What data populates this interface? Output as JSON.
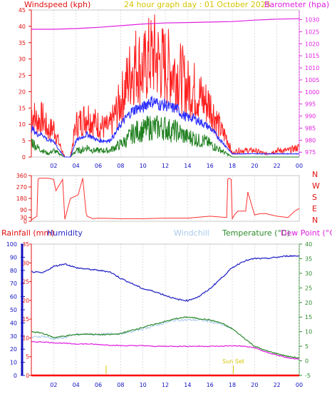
{
  "title": "24 hour graph day : 01 October 2025",
  "colors": {
    "wind_gust": "#ff2020",
    "wind_avg": "#3030ff",
    "wind_low": "#208020",
    "barometer": "#e020e0",
    "direction": "#ff3030",
    "humidity": "#2b2bc8",
    "windchill": "#a8c8ec",
    "temperature": "#2e8b2e",
    "dewpoint": "#e020e0",
    "rainfall": "#ff0000",
    "sun": "#d6c600",
    "grid": "#c8c8c8",
    "frame": "#c8c8c8"
  },
  "chart_data": [
    {
      "type": "line",
      "title": "24 hour graph day : 01 October 2025",
      "left_axis_label": "Windspeed (kph)",
      "right_axis_label": "Barometer (hpa)",
      "x_ticks": [
        "02",
        "04",
        "06",
        "08",
        "10",
        "12",
        "14",
        "16",
        "18",
        "20",
        "22",
        "00"
      ],
      "x_range": [
        0,
        24
      ],
      "ylim_left": [
        0,
        45
      ],
      "y_ticks_left": [
        0,
        5,
        10,
        15,
        20,
        25,
        30,
        35,
        40,
        45
      ],
      "ylim_right": [
        973,
        1034
      ],
      "y_ticks_right": [
        975,
        980,
        985,
        990,
        995,
        1000,
        1005,
        1010,
        1015,
        1020,
        1025,
        1030
      ],
      "series": [
        {
          "key": "wind_gust",
          "hours": [
            0,
            0.5,
            1,
            1.5,
            2,
            2.5,
            3,
            3.5,
            4,
            4.5,
            5,
            5.5,
            6,
            6.5,
            7,
            7.5,
            8,
            8.5,
            9,
            9.5,
            10,
            10.5,
            11,
            11.5,
            12,
            12.5,
            13,
            13.5,
            14,
            14.5,
            15,
            15.5,
            16,
            16.5,
            17,
            17.5,
            18,
            18.5,
            19,
            20,
            21,
            22,
            23,
            24
          ],
          "values": [
            14,
            11,
            12,
            8,
            9,
            4,
            0,
            0,
            10,
            11,
            13,
            11,
            10,
            9,
            9,
            13,
            17,
            22,
            27,
            29,
            26,
            30,
            31,
            29,
            28,
            27,
            26,
            24,
            21,
            21,
            19,
            17,
            16,
            12,
            8,
            6,
            1,
            2,
            2,
            2,
            1,
            2,
            2,
            3
          ]
        },
        {
          "key": "wind_avg",
          "hours": [
            0,
            0.5,
            1,
            1.5,
            2,
            2.5,
            3,
            3.5,
            4,
            4.5,
            5,
            5.5,
            6,
            6.5,
            7,
            7.5,
            8,
            8.5,
            9,
            9.5,
            10,
            10.5,
            11,
            11.5,
            12,
            12.5,
            13,
            13.5,
            14,
            14.5,
            15,
            15.5,
            16,
            16.5,
            17,
            17.5,
            18,
            19,
            20,
            21,
            22,
            23,
            24
          ],
          "values": [
            9,
            7,
            7,
            5,
            5,
            2,
            0,
            0,
            5,
            6,
            7,
            6,
            5,
            5,
            5,
            7,
            10,
            12,
            14,
            15,
            15,
            17,
            17,
            16,
            16,
            15,
            15,
            13,
            12,
            12,
            11,
            10,
            9,
            7,
            5,
            3,
            1,
            1,
            1,
            1,
            1,
            1,
            1
          ]
        },
        {
          "key": "wind_low",
          "hours": [
            0,
            0.5,
            1,
            1.5,
            2,
            2.5,
            3,
            3.5,
            4,
            4.5,
            5,
            5.5,
            6,
            6.5,
            7,
            7.5,
            8,
            8.5,
            9,
            9.5,
            10,
            10.5,
            11,
            11.5,
            12,
            12.5,
            13,
            13.5,
            14,
            14.5,
            15,
            15.5,
            16,
            16.5,
            17,
            17.5,
            18,
            19,
            24
          ],
          "values": [
            5,
            3,
            2,
            1,
            2,
            1,
            0,
            0,
            2,
            2,
            3,
            2,
            2,
            2,
            2,
            3,
            4,
            5,
            7,
            8,
            8,
            9,
            9,
            9,
            9,
            8,
            8,
            7,
            6,
            6,
            5,
            5,
            4,
            3,
            2,
            1,
            0,
            0,
            0
          ]
        },
        {
          "key": "barometer",
          "axis": "right",
          "hours": [
            0,
            2,
            4,
            6,
            8,
            10,
            12,
            14,
            16,
            18,
            20,
            22,
            24
          ],
          "values": [
            1026,
            1026,
            1026.3,
            1026.8,
            1027.5,
            1028.2,
            1028.6,
            1028.8,
            1029,
            1029.2,
            1029.8,
            1030.2,
            1030.4
          ]
        }
      ]
    },
    {
      "type": "line",
      "title": "",
      "right_axis_label": "N W S E N",
      "x_range": [
        0,
        24
      ],
      "ylim": [
        0,
        360
      ],
      "y_ticks": [
        0,
        30,
        90,
        180,
        270,
        360
      ],
      "series": [
        {
          "key": "direction",
          "hours": [
            0,
            0.5,
            0.6,
            0.7,
            1.5,
            2,
            2.2,
            2.8,
            3.0,
            3.5,
            4,
            4.2,
            4.6,
            4.9,
            5,
            5.5,
            6,
            8,
            10,
            12,
            14,
            16,
            17.5,
            17.6,
            17.7,
            17.9,
            18,
            18.2,
            18.5,
            19.2,
            19.4,
            20,
            20.5,
            21,
            22,
            23,
            23.6,
            24
          ],
          "values": [
            10,
            40,
            330,
            340,
            340,
            330,
            240,
            330,
            15,
            180,
            200,
            210,
            340,
            70,
            40,
            20,
            25,
            20,
            20,
            25,
            25,
            40,
            30,
            330,
            340,
            330,
            20,
            50,
            80,
            80,
            230,
            50,
            60,
            60,
            40,
            30,
            80,
            100
          ]
        }
      ]
    },
    {
      "type": "line",
      "legend": [
        "Rainfall (mm)",
        "Humidity",
        "Windchill",
        "Temperature (°C)",
        "Dew Point (°C)"
      ],
      "x_ticks": [
        "02",
        "04",
        "06",
        "08",
        "10",
        "12",
        "14",
        "16",
        "18",
        "20",
        "22",
        "00"
      ],
      "x_range": [
        0,
        24
      ],
      "ylim_humidity": [
        0,
        100
      ],
      "y_ticks_humidity": [
        0,
        10,
        20,
        30,
        40,
        50,
        60,
        70,
        80,
        90,
        100
      ],
      "ylim_rain": [
        0,
        35
      ],
      "y_ticks_rain": [
        0,
        5,
        10,
        15,
        20,
        25,
        30,
        35
      ],
      "ylim_temp": [
        -5,
        40
      ],
      "y_ticks_temp": [
        -5,
        0,
        5,
        10,
        15,
        20,
        25,
        30,
        35,
        40
      ],
      "annotations": [
        {
          "text": "Sun Set",
          "hour": 18.1
        }
      ],
      "series": [
        {
          "key": "humidity",
          "name": "Humidity",
          "axis": "humidity",
          "hours": [
            0,
            1,
            2,
            3,
            4,
            5,
            6,
            7,
            8,
            9,
            10,
            11,
            12,
            13,
            14,
            15,
            16,
            17,
            18,
            19,
            20,
            21,
            22,
            23,
            24
          ],
          "values": [
            79,
            78,
            83,
            85,
            82,
            81,
            80,
            79,
            74,
            70,
            66,
            64,
            61,
            58,
            57,
            60,
            66,
            74,
            82,
            87,
            89,
            89,
            90,
            91,
            91
          ]
        },
        {
          "key": "windchill",
          "name": "Windchill",
          "axis": "temp",
          "hours": [
            0,
            1,
            2,
            3,
            4,
            5,
            6,
            7,
            8,
            9,
            10,
            11,
            12,
            13,
            14,
            15,
            16,
            17,
            18
          ],
          "values": [
            8,
            8.5,
            7.5,
            8,
            9,
            9.2,
            9,
            9.2,
            9.5,
            10,
            11,
            12,
            13,
            14,
            14,
            14,
            13.5,
            12.5,
            11
          ]
        },
        {
          "key": "temperature",
          "name": "Temperature (°C)",
          "axis": "temp",
          "hours": [
            0,
            1,
            2,
            3,
            4,
            5,
            6,
            7,
            8,
            9,
            10,
            11,
            12,
            13,
            14,
            15,
            16,
            17,
            18,
            19,
            20,
            21,
            22,
            23,
            24
          ],
          "values": [
            10,
            9.5,
            8,
            8.5,
            9,
            9.2,
            9,
            9,
            9.3,
            10.5,
            11.5,
            12.5,
            13.5,
            14.5,
            15,
            14.5,
            14,
            13,
            11,
            8,
            5,
            3.5,
            2.5,
            1.5,
            1
          ]
        },
        {
          "key": "dewpoint",
          "name": "Dew Point (°C)",
          "axis": "temp",
          "hours": [
            0,
            1,
            2,
            3,
            4,
            5,
            6,
            7,
            8,
            9,
            10,
            11,
            12,
            13,
            14,
            15,
            16,
            17,
            18,
            19,
            20,
            21,
            22,
            23,
            24
          ],
          "values": [
            6.5,
            6.5,
            6.2,
            6,
            5.8,
            5.8,
            5.6,
            5.4,
            5.2,
            5.2,
            5.2,
            5,
            5,
            5,
            5,
            5,
            5,
            5,
            5.2,
            5,
            4.5,
            3,
            2,
            1,
            0.5
          ]
        },
        {
          "key": "rainfall",
          "name": "Rainfall (mm)",
          "axis": "rain",
          "hours": [
            0,
            24
          ],
          "values": [
            0,
            0
          ]
        }
      ]
    }
  ]
}
